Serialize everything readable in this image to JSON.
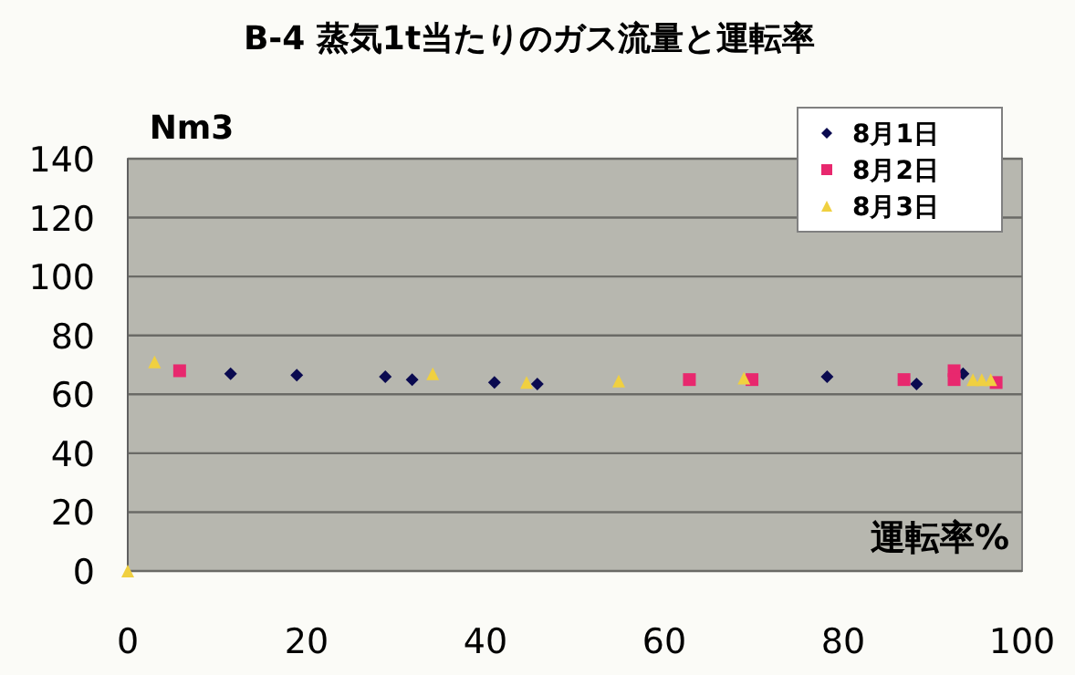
{
  "chart_data": {
    "type": "scatter",
    "title": "B-4  蒸気1t当たりのガス流量と運転率",
    "xlabel": "運転率%",
    "ylabel": "Nm3",
    "xlim": [
      0,
      100
    ],
    "xticks": [
      0,
      20,
      40,
      60,
      80,
      100
    ],
    "ylim": [
      0,
      140
    ],
    "yticks": [
      0,
      20,
      40,
      60,
      80,
      100,
      120,
      140
    ],
    "grid": "y",
    "legend": "top right",
    "series": [
      {
        "name": "8月1日",
        "color": "#0a0a50",
        "marker": "diamond",
        "x": [
          11.5,
          18.9,
          28.8,
          31.8,
          41.0,
          45.8,
          78.2,
          88.2,
          93.4
        ],
        "values": [
          67,
          66.5,
          66,
          65,
          64,
          63.5,
          66,
          63.5,
          67
        ]
      },
      {
        "name": "8月2日",
        "color": "#e8286e",
        "marker": "square",
        "x": [
          5.8,
          62.8,
          69.8,
          86.8,
          92.4,
          92.4,
          97.1
        ],
        "values": [
          68,
          65,
          65,
          65,
          68,
          65,
          64
        ]
      },
      {
        "name": "8月3日",
        "color": "#f0d040",
        "marker": "triangle",
        "x": [
          0,
          3.0,
          34.1,
          44.6,
          54.9,
          68.9,
          94.5,
          95.5,
          96.5
        ],
        "values": [
          0,
          71,
          67,
          64,
          64.5,
          65.5,
          65,
          65,
          65
        ]
      }
    ]
  }
}
